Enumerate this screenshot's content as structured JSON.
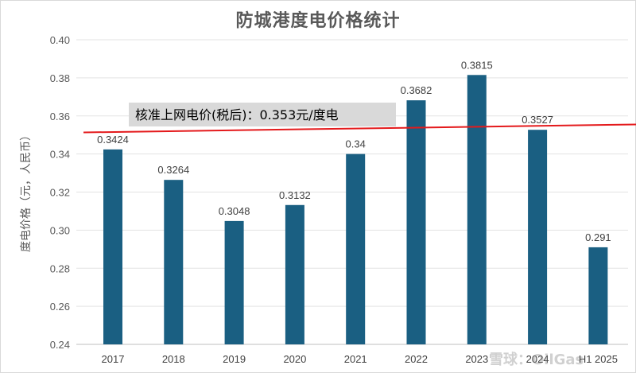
{
  "chart_data": {
    "type": "bar",
    "title": "防城港度电价格统计",
    "ylabel": "度电价格（元，人民币）",
    "xlabel": "",
    "categories": [
      "2017",
      "2018",
      "2019",
      "2020",
      "2021",
      "2022",
      "2023",
      "2024",
      "H1 2025"
    ],
    "values": [
      0.3424,
      0.3264,
      0.3048,
      0.3132,
      0.34,
      0.3682,
      0.3815,
      0.3527,
      0.291
    ],
    "value_labels": [
      "0.3424",
      "0.3264",
      "0.3048",
      "0.3132",
      "0.34",
      "0.3682",
      "0.3815",
      "0.3527",
      "0.291"
    ],
    "ylim": [
      0.24,
      0.4
    ],
    "yticks": [
      "0.24",
      "0.26",
      "0.28",
      "0.30",
      "0.32",
      "0.34",
      "0.36",
      "0.38",
      "0.40"
    ],
    "ytick_values": [
      0.24,
      0.26,
      0.28,
      0.3,
      0.32,
      0.34,
      0.36,
      0.38,
      0.4
    ],
    "grid": true,
    "bar_color": "#1a5f82",
    "reference_line": {
      "value": 0.353,
      "label": "核准上网电价(税后)：0.353元/度电",
      "color": "#e41a1c"
    }
  },
  "watermark": "雪球：OilGas"
}
